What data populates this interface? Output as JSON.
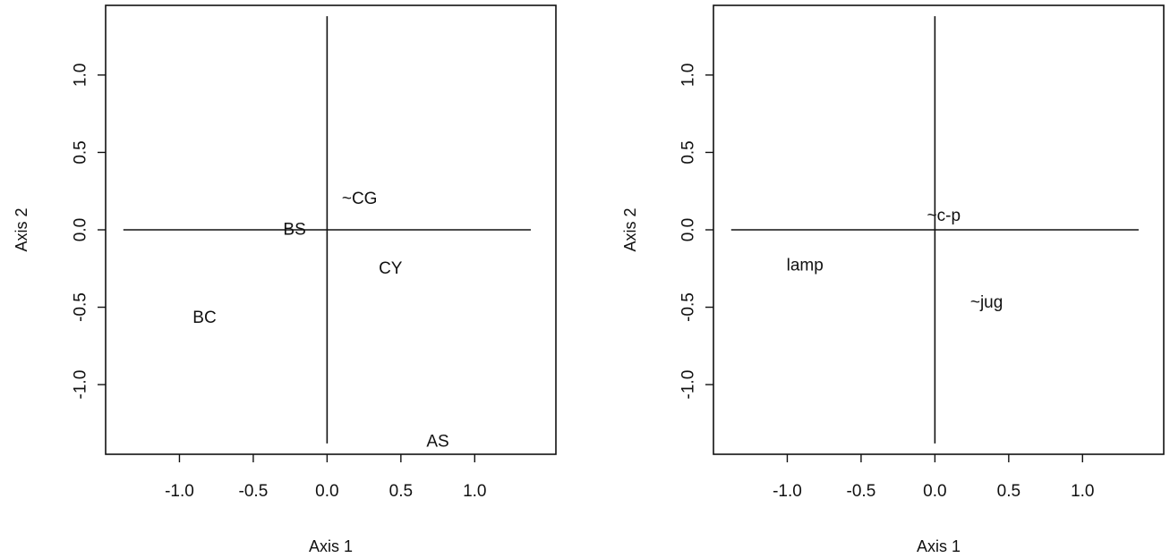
{
  "colors": {
    "ink": "#111111",
    "background": "#ffffff"
  },
  "chart_data": [
    {
      "type": "scatter",
      "xlabel": "Axis 1",
      "ylabel": "Axis 2",
      "xlim": [
        -1.5,
        1.55
      ],
      "ylim": [
        -1.45,
        1.45
      ],
      "xticks": [
        -1.0,
        -0.5,
        0.0,
        0.5,
        1.0
      ],
      "xtick_labels": [
        "-1.0",
        "-0.5",
        "0.0",
        "0.5",
        "1.0"
      ],
      "yticks": [
        -1.0,
        -0.5,
        0.0,
        0.5,
        1.0
      ],
      "ytick_labels": [
        "-1.0",
        "-0.5",
        "0.0",
        "0.5",
        "1.0"
      ],
      "reference_lines": {
        "horizontal": {
          "y": 0.0,
          "x_from": -1.38,
          "x_to": 1.38
        },
        "vertical": {
          "x": 0.0,
          "y_from": -1.38,
          "y_to": 1.38
        }
      },
      "grid": false,
      "points": [
        {
          "label": "~CG",
          "x": 0.22,
          "y": 0.2
        },
        {
          "label": "BS",
          "x": -0.22,
          "y": 0.0
        },
        {
          "label": "CY",
          "x": 0.43,
          "y": -0.25
        },
        {
          "label": "BC",
          "x": -0.83,
          "y": -0.57
        },
        {
          "label": "AS",
          "x": 0.75,
          "y": -1.37
        }
      ]
    },
    {
      "type": "scatter",
      "xlabel": "Axis 1",
      "ylabel": "Axis 2",
      "xlim": [
        -1.5,
        1.55
      ],
      "ylim": [
        -1.45,
        1.45
      ],
      "xticks": [
        -1.0,
        -0.5,
        0.0,
        0.5,
        1.0
      ],
      "xtick_labels": [
        "-1.0",
        "-0.5",
        "0.0",
        "0.5",
        "1.0"
      ],
      "yticks": [
        -1.0,
        -0.5,
        0.0,
        0.5,
        1.0
      ],
      "ytick_labels": [
        "-1.0",
        "-0.5",
        "0.0",
        "0.5",
        "1.0"
      ],
      "reference_lines": {
        "horizontal": {
          "y": 0.0,
          "x_from": -1.38,
          "x_to": 1.38
        },
        "vertical": {
          "x": 0.0,
          "y_from": -1.38,
          "y_to": 1.38
        }
      },
      "grid": false,
      "points": [
        {
          "label": "~c-p",
          "x": 0.06,
          "y": 0.09
        },
        {
          "label": "lamp",
          "x": -0.88,
          "y": -0.23
        },
        {
          "label": "~jug",
          "x": 0.35,
          "y": -0.47
        }
      ]
    }
  ]
}
